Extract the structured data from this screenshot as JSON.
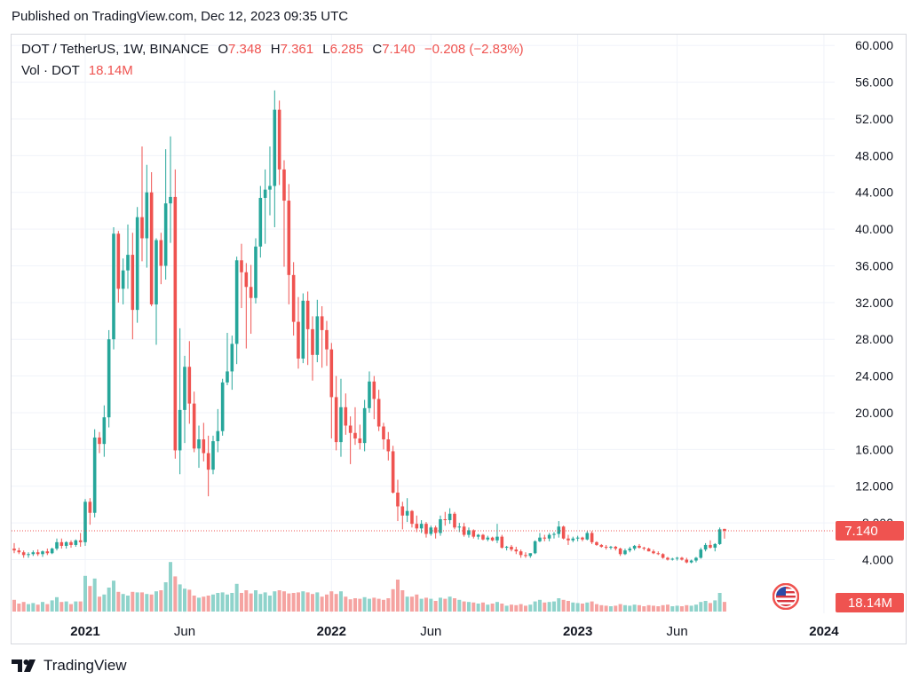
{
  "header": {
    "published": "Published on TradingView.com, Dec 12, 2023 09:35 UTC"
  },
  "legend": {
    "symbol": "DOT / TetherUS, 1W, BINANCE",
    "o_label": "O",
    "o_value": "7.348",
    "h_label": "H",
    "h_value": "7.361",
    "l_label": "L",
    "l_value": "6.285",
    "c_label": "C",
    "c_value": "7.140",
    "change": "−0.208 (−2.83%)",
    "vol_label": "Vol · DOT",
    "vol_value": "18.14M"
  },
  "footer": {
    "brand": "TradingView"
  },
  "colors": {
    "up": "#26a69a",
    "down": "#ef5350",
    "vol_up": "#8fd3cb",
    "vol_down": "#f5a3a1",
    "grid": "#f0f3fa",
    "text": "#131722"
  },
  "icons": {
    "flag": "us-flag-icon",
    "logo": "tradingview-logo-icon"
  },
  "chart_data": {
    "type": "candlestick",
    "symbol": "DOT / TetherUS",
    "interval": "1W",
    "exchange": "BINANCE",
    "y_ticks": [
      "60.000",
      "56.000",
      "52.000",
      "48.000",
      "44.000",
      "40.000",
      "36.000",
      "32.000",
      "28.000",
      "24.000",
      "20.000",
      "16.000",
      "12.000",
      "8.000",
      "4.000"
    ],
    "y_tick_values": [
      60,
      56,
      52,
      48,
      44,
      40,
      36,
      32,
      28,
      24,
      20,
      16,
      12,
      8,
      4
    ],
    "x_ticks": [
      "2021",
      "Jun",
      "2022",
      "Jun",
      "2023",
      "Jun",
      "2024"
    ],
    "x_tick_bold": [
      true,
      false,
      true,
      false,
      true,
      false,
      true
    ],
    "x_tick_index": [
      15,
      36,
      67,
      88,
      119,
      140,
      171
    ],
    "last_price_label": "7.140",
    "last_price": 7.14,
    "volume_label": "18.14M",
    "volume_unit": "M DOT",
    "candles": [
      [
        5.2,
        5.8,
        4.7,
        5.0,
        22
      ],
      [
        5.0,
        5.3,
        4.6,
        4.8,
        15
      ],
      [
        4.8,
        5.0,
        4.2,
        4.5,
        18
      ],
      [
        4.5,
        4.8,
        4.2,
        4.6,
        14
      ],
      [
        4.6,
        5.0,
        4.4,
        4.8,
        16
      ],
      [
        4.8,
        5.1,
        4.4,
        4.6,
        13
      ],
      [
        4.6,
        5.0,
        4.3,
        4.9,
        18
      ],
      [
        4.9,
        5.2,
        4.5,
        4.7,
        14
      ],
      [
        4.7,
        5.3,
        4.6,
        5.2,
        21
      ],
      [
        5.2,
        6.3,
        5.0,
        5.9,
        27
      ],
      [
        5.9,
        6.3,
        5.2,
        5.5,
        18
      ],
      [
        5.5,
        6.0,
        5.2,
        5.9,
        19
      ],
      [
        5.9,
        6.1,
        5.3,
        5.6,
        14
      ],
      [
        5.6,
        6.2,
        5.4,
        6.1,
        19
      ],
      [
        6.1,
        6.9,
        5.4,
        5.9,
        19
      ],
      [
        5.9,
        10.6,
        5.5,
        10.3,
        67
      ],
      [
        10.3,
        10.7,
        7.8,
        9.1,
        48
      ],
      [
        9.1,
        18.2,
        8.6,
        17.3,
        62
      ],
      [
        17.3,
        17.9,
        15.6,
        16.6,
        28
      ],
      [
        16.6,
        20.8,
        15.2,
        19.5,
        32
      ],
      [
        19.5,
        29.0,
        18.4,
        28.0,
        45
      ],
      [
        28.0,
        40.2,
        26.9,
        39.5,
        58
      ],
      [
        39.5,
        39.8,
        32.0,
        33.5,
        37
      ],
      [
        33.5,
        36.8,
        31.8,
        35.5,
        33
      ],
      [
        35.5,
        40.5,
        33.5,
        37.2,
        30
      ],
      [
        37.2,
        39.6,
        28.0,
        31.2,
        37
      ],
      [
        31.2,
        42.4,
        29.8,
        41.3,
        36
      ],
      [
        41.3,
        49.0,
        36.5,
        39.0,
        36
      ],
      [
        39.0,
        47.0,
        35.8,
        44.0,
        33
      ],
      [
        44.0,
        46.2,
        31.6,
        31.8,
        32
      ],
      [
        31.8,
        39.0,
        27.4,
        38.8,
        38
      ],
      [
        38.8,
        39.6,
        34.0,
        36.0,
        40
      ],
      [
        36.0,
        48.7,
        34.5,
        42.8,
        55
      ],
      [
        42.8,
        50.1,
        38.5,
        43.5,
        93
      ],
      [
        43.5,
        46.5,
        15.0,
        15.9,
        66
      ],
      [
        15.9,
        29.2,
        13.3,
        20.3,
        51
      ],
      [
        20.3,
        26.2,
        16.7,
        25.0,
        43
      ],
      [
        25.0,
        27.8,
        18.8,
        21.0,
        41
      ],
      [
        21.0,
        22.3,
        15.7,
        16.1,
        30
      ],
      [
        16.1,
        18.6,
        14.0,
        17.1,
        26
      ],
      [
        17.1,
        18.9,
        14.7,
        15.6,
        28
      ],
      [
        15.6,
        17.5,
        10.9,
        13.8,
        30
      ],
      [
        13.8,
        17.5,
        13.3,
        16.9,
        32
      ],
      [
        16.9,
        20.4,
        15.7,
        18.0,
        35
      ],
      [
        18.0,
        23.7,
        17.5,
        23.3,
        36
      ],
      [
        23.3,
        28.7,
        23.0,
        24.5,
        32
      ],
      [
        24.5,
        28.4,
        22.5,
        27.5,
        35
      ],
      [
        27.5,
        37.0,
        25.3,
        36.6,
        52
      ],
      [
        36.6,
        38.4,
        31.4,
        35.3,
        35
      ],
      [
        35.3,
        36.3,
        27.0,
        33.7,
        40
      ],
      [
        33.7,
        36.1,
        28.6,
        32.5,
        34
      ],
      [
        32.5,
        39.0,
        31.9,
        38.1,
        40
      ],
      [
        38.1,
        44.7,
        36.9,
        43.4,
        33
      ],
      [
        43.4,
        46.5,
        38.4,
        44.3,
        36
      ],
      [
        44.3,
        49.0,
        41.5,
        44.7,
        30
      ],
      [
        44.7,
        55.1,
        40.2,
        53.0,
        38
      ],
      [
        53.0,
        54.0,
        44.8,
        46.5,
        40
      ],
      [
        46.5,
        47.5,
        35.9,
        43.1,
        38
      ],
      [
        43.1,
        44.9,
        31.8,
        35.0,
        34
      ],
      [
        35.0,
        36.4,
        28.4,
        29.9,
        35
      ],
      [
        29.9,
        32.6,
        24.8,
        25.9,
        36
      ],
      [
        25.9,
        33.0,
        25.4,
        32.2,
        38
      ],
      [
        32.2,
        33.2,
        25.2,
        29.1,
        36
      ],
      [
        29.1,
        30.5,
        23.5,
        26.3,
        33
      ],
      [
        26.3,
        32.3,
        25.5,
        30.5,
        36
      ],
      [
        30.5,
        31.6,
        24.9,
        29.0,
        28
      ],
      [
        29.0,
        30.0,
        25.1,
        26.9,
        32
      ],
      [
        26.9,
        27.6,
        17.2,
        21.7,
        38
      ],
      [
        21.7,
        24.0,
        15.9,
        16.8,
        33
      ],
      [
        16.8,
        23.7,
        15.2,
        20.6,
        38
      ],
      [
        20.6,
        22.1,
        17.6,
        18.6,
        28
      ],
      [
        18.6,
        19.6,
        14.4,
        17.8,
        23
      ],
      [
        17.8,
        20.6,
        16.5,
        17.2,
        25
      ],
      [
        17.2,
        18.7,
        16.0,
        16.7,
        24
      ],
      [
        16.7,
        21.4,
        15.8,
        20.5,
        27
      ],
      [
        20.5,
        24.5,
        20.0,
        23.4,
        24
      ],
      [
        23.4,
        24.0,
        19.3,
        21.5,
        26
      ],
      [
        21.5,
        22.5,
        18.0,
        18.5,
        24
      ],
      [
        18.5,
        18.9,
        16.0,
        17.1,
        22
      ],
      [
        17.1,
        17.9,
        14.8,
        15.8,
        25
      ],
      [
        15.8,
        16.4,
        11.2,
        11.3,
        42
      ],
      [
        11.3,
        12.7,
        8.2,
        9.8,
        60
      ],
      [
        9.8,
        10.3,
        7.3,
        8.8,
        40
      ],
      [
        8.8,
        10.7,
        8.1,
        9.3,
        28
      ],
      [
        9.3,
        9.4,
        7.5,
        7.9,
        28
      ],
      [
        7.9,
        8.8,
        7.0,
        7.4,
        32
      ],
      [
        7.4,
        8.3,
        6.9,
        7.9,
        24
      ],
      [
        7.9,
        8.1,
        6.4,
        6.8,
        26
      ],
      [
        6.8,
        7.7,
        6.6,
        7.5,
        24
      ],
      [
        7.5,
        7.7,
        6.3,
        6.9,
        20
      ],
      [
        6.9,
        8.8,
        6.6,
        8.4,
        26
      ],
      [
        8.4,
        9.2,
        7.7,
        8.3,
        24
      ],
      [
        8.3,
        9.6,
        7.9,
        9.0,
        28
      ],
      [
        9.0,
        9.2,
        7.3,
        7.5,
        25
      ],
      [
        7.5,
        8.0,
        7.0,
        7.6,
        22
      ],
      [
        7.6,
        8.0,
        6.5,
        6.7,
        19
      ],
      [
        6.7,
        7.5,
        6.4,
        7.2,
        18
      ],
      [
        7.2,
        7.3,
        6.3,
        6.5,
        17
      ],
      [
        6.5,
        6.8,
        6.2,
        6.7,
        15
      ],
      [
        6.7,
        6.8,
        6.1,
        6.2,
        17
      ],
      [
        6.2,
        6.6,
        6.0,
        6.4,
        13
      ],
      [
        6.4,
        6.5,
        6.0,
        6.1,
        15
      ],
      [
        6.1,
        7.9,
        5.8,
        6.5,
        18
      ],
      [
        6.5,
        6.7,
        5.2,
        5.3,
        15
      ],
      [
        5.3,
        5.5,
        5.0,
        5.4,
        11
      ],
      [
        5.4,
        5.6,
        4.9,
        5.1,
        13
      ],
      [
        5.1,
        5.4,
        4.6,
        4.9,
        12
      ],
      [
        4.9,
        5.1,
        4.2,
        4.5,
        14
      ],
      [
        4.5,
        4.8,
        4.2,
        4.4,
        11
      ],
      [
        4.4,
        4.7,
        4.2,
        4.7,
        13
      ],
      [
        4.7,
        6.1,
        4.6,
        6.0,
        19
      ],
      [
        6.0,
        6.9,
        5.9,
        6.4,
        22
      ],
      [
        6.4,
        6.7,
        6.0,
        6.3,
        17
      ],
      [
        6.3,
        6.9,
        6.0,
        6.7,
        18
      ],
      [
        6.7,
        7.0,
        6.3,
        6.8,
        19
      ],
      [
        6.8,
        8.2,
        6.4,
        7.6,
        25
      ],
      [
        7.6,
        7.7,
        6.2,
        6.3,
        22
      ],
      [
        6.3,
        6.7,
        5.6,
        6.1,
        20
      ],
      [
        6.1,
        6.5,
        5.9,
        6.3,
        17
      ],
      [
        6.3,
        6.6,
        6.0,
        6.4,
        16
      ],
      [
        6.4,
        6.5,
        6.0,
        6.2,
        15
      ],
      [
        6.2,
        7.1,
        6.1,
        6.9,
        17
      ],
      [
        6.9,
        7.1,
        5.7,
        5.9,
        19
      ],
      [
        5.9,
        6.0,
        5.5,
        5.6,
        14
      ],
      [
        5.6,
        5.7,
        5.3,
        5.4,
        12
      ],
      [
        5.4,
        5.6,
        5.1,
        5.3,
        11
      ],
      [
        5.3,
        5.5,
        5.1,
        5.4,
        10
      ],
      [
        5.4,
        5.5,
        5.0,
        5.2,
        11
      ],
      [
        5.2,
        5.3,
        4.4,
        4.6,
        14
      ],
      [
        4.6,
        5.2,
        4.5,
        5.0,
        12
      ],
      [
        5.0,
        5.4,
        4.8,
        5.2,
        11
      ],
      [
        5.2,
        5.6,
        5.0,
        5.5,
        13
      ],
      [
        5.5,
        5.7,
        5.2,
        5.3,
        12
      ],
      [
        5.3,
        5.4,
        5.0,
        5.2,
        10
      ],
      [
        5.2,
        5.3,
        4.9,
        4.9,
        12
      ],
      [
        4.9,
        5.1,
        4.6,
        4.7,
        11
      ],
      [
        4.7,
        4.9,
        4.5,
        4.6,
        10
      ],
      [
        4.6,
        4.7,
        4.1,
        4.2,
        12
      ],
      [
        4.2,
        4.3,
        3.9,
        4.0,
        13
      ],
      [
        4.0,
        4.2,
        3.9,
        4.1,
        10
      ],
      [
        4.1,
        4.3,
        3.9,
        4.2,
        11
      ],
      [
        4.2,
        4.3,
        3.9,
        4.0,
        10
      ],
      [
        4.0,
        4.2,
        3.6,
        3.7,
        12
      ],
      [
        3.7,
        4.0,
        3.6,
        3.9,
        11
      ],
      [
        3.9,
        4.3,
        3.7,
        4.2,
        13
      ],
      [
        4.2,
        5.3,
        4.1,
        5.1,
        18
      ],
      [
        5.1,
        5.8,
        4.9,
        5.6,
        20
      ],
      [
        5.6,
        6.1,
        5.2,
        5.3,
        16
      ],
      [
        5.3,
        5.8,
        4.9,
        5.7,
        21
      ],
      [
        5.7,
        7.5,
        5.6,
        7.3,
        35
      ],
      [
        7.348,
        7.361,
        6.285,
        7.14,
        18.14
      ]
    ]
  }
}
